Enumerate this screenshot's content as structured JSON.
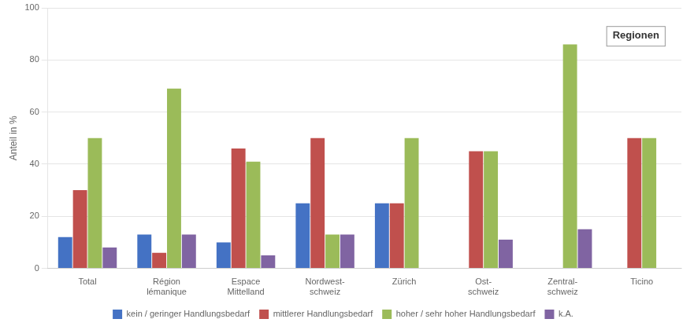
{
  "chart_data": {
    "type": "bar",
    "ylabel": "Anteil in %",
    "annotations": [
      "Regionen"
    ],
    "categories": [
      "Total",
      "Région\nlémanique",
      "Espace\nMittelland",
      "Nordwest-\nschweiz",
      "Zürich",
      "Ost-\nschweiz",
      "Zentral-\nschweiz",
      "Ticino"
    ],
    "series": [
      {
        "name": "kein / geringer Handlungsbedarf",
        "color": "#4472C4",
        "values": [
          12,
          13,
          10,
          25,
          25,
          0,
          0,
          0
        ]
      },
      {
        "name": "mittlerer Handlungsbedarf",
        "color": "#C0504D",
        "values": [
          30,
          6,
          46,
          50,
          25,
          45,
          0,
          50
        ]
      },
      {
        "name": "hoher / sehr hoher Handlungsbedarf",
        "color": "#9BBB59",
        "values": [
          50,
          69,
          41,
          13,
          50,
          45,
          86,
          50
        ]
      },
      {
        "name": "k.A.",
        "color": "#8064A2",
        "values": [
          8,
          13,
          5,
          13,
          0,
          11,
          15,
          0
        ]
      }
    ],
    "ylim": [
      0,
      100
    ],
    "yticks": [
      0,
      20,
      40,
      60,
      80,
      100
    ],
    "grid": true,
    "legend": "bottom"
  }
}
